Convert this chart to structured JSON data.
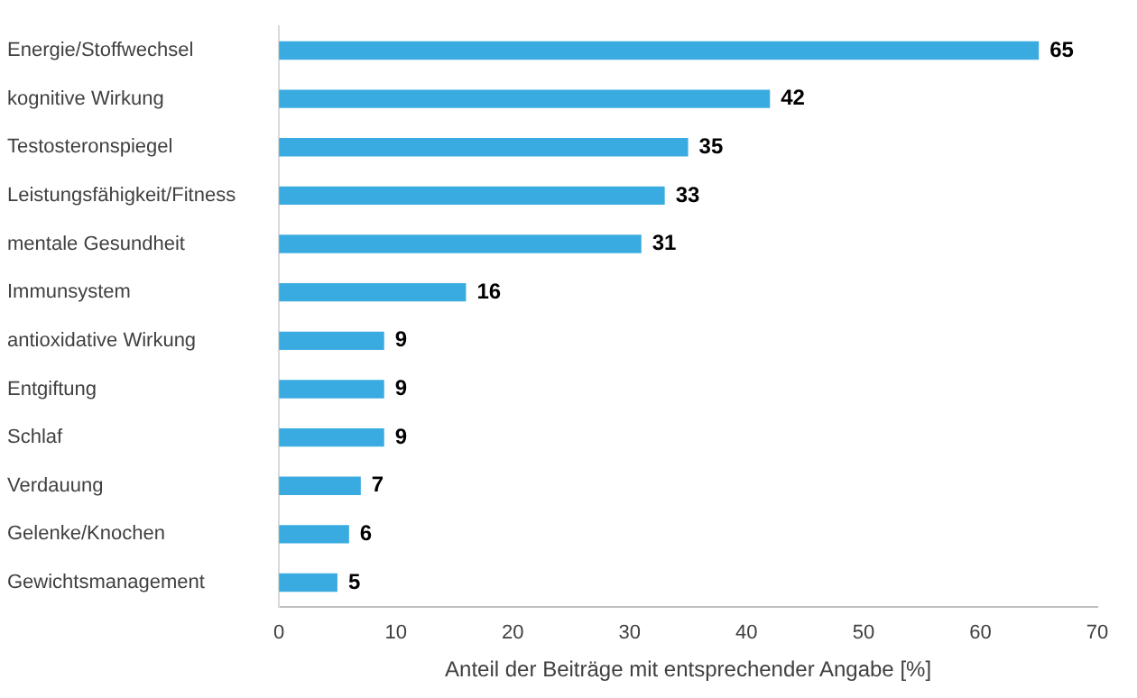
{
  "chart_data": {
    "type": "bar",
    "orientation": "horizontal",
    "categories": [
      "Energie/Stoffwechsel",
      "kognitive Wirkung",
      "Testosteronspiegel",
      "Leistungsfähigkeit/Fitness",
      "mentale Gesundheit",
      "Immunsystem",
      "antioxidative Wirkung",
      "Entgiftung",
      "Schlaf",
      "Verdauung",
      "Gelenke/Knochen",
      "Gewichtsmanagement"
    ],
    "values": [
      65,
      42,
      35,
      33,
      31,
      16,
      9,
      9,
      9,
      7,
      6,
      5
    ],
    "color": "#3aabe0",
    "xlabel": "Anteil der Beiträge mit entsprechender Angabe [%]",
    "xlim": [
      0,
      70
    ],
    "xticks": [
      0,
      10,
      20,
      30,
      40,
      50,
      60,
      70
    ],
    "grid": false,
    "legend": false,
    "data_labels": true
  }
}
